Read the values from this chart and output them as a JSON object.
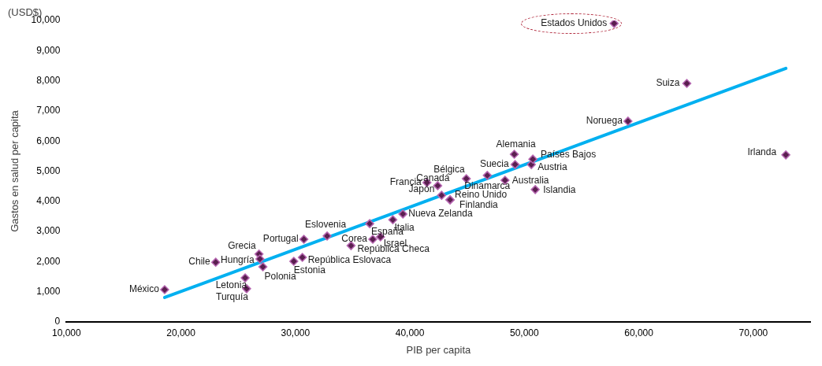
{
  "chart_data": {
    "type": "scatter",
    "xlabel": "PIB per capita",
    "ylabel": "Gastos en salud per capita",
    "annotations": [
      "(USD$)"
    ],
    "xlim": [
      10000,
      75000
    ],
    "xticks": [
      {
        "value": 10000,
        "label": "10,000"
      },
      {
        "value": 20000,
        "label": "20,000"
      },
      {
        "value": 30000,
        "label": "30,000"
      },
      {
        "value": 40000,
        "label": "40,000"
      },
      {
        "value": 50000,
        "label": "50,000"
      },
      {
        "value": 60000,
        "label": "60,000"
      },
      {
        "value": 70000,
        "label": "70,000"
      }
    ],
    "ylim": [
      0,
      10000
    ],
    "yticks": [
      0,
      {
        "value": 1000,
        "label": "1,000"
      },
      {
        "value": 2000,
        "label": "2,000"
      },
      {
        "value": 3000,
        "label": "3,000"
      },
      {
        "value": 4000,
        "label": "4,000"
      },
      {
        "value": 5000,
        "label": "5,000"
      },
      {
        "value": 6000,
        "label": "6,000"
      },
      {
        "value": 7000,
        "label": "7,000"
      },
      {
        "value": 8000,
        "label": "8,000"
      },
      {
        "value": 9000,
        "label": "9,000"
      },
      {
        "value": 10000,
        "label": "10,000"
      }
    ],
    "grid": false,
    "legend": false,
    "marker": "diamond",
    "series": [
      {
        "type": "scatter",
        "color": "#5a1f4f",
        "x": [
          18580,
          23040,
          26820,
          26900,
          27160,
          25610,
          25740,
          30740,
          32770,
          29860,
          30610,
          34860,
          36760,
          37430,
          36490,
          38510,
          39390,
          41490,
          42430,
          42770,
          43510,
          44930,
          43510,
          49120,
          49190,
          48310,
          50950,
          50610,
          46760,
          50740,
          59050,
          64190,
          72840,
          57840
        ],
        "values": [
          1070,
          1980,
          2250,
          2090,
          1830,
          1460,
          1100,
          2740,
          2850,
          2010,
          2140,
          2530,
          2740,
          2820,
          3260,
          3390,
          3580,
          4620,
          4520,
          4200,
          4050,
          4750,
          4050,
          5560,
          5220,
          4700,
          4390,
          5220,
          4860,
          5400,
          6660,
          7910,
          5540,
          9900
        ],
        "value_labels": [
          "México",
          "Chile",
          "Grecia",
          "Hungría",
          "Polonia",
          "Letonia",
          "Turquía",
          "Portugal",
          "Eslovenia",
          "Estonia",
          "República Eslovaca",
          "República Checa",
          "Corea",
          "Israel",
          "España",
          "Italia",
          "Nueva Zelanda",
          "Francia",
          "Canadá",
          "Japón",
          "Reino Unido",
          "Bélgica",
          "Finlandia",
          "Alemania",
          "Suecia",
          "Australia",
          "Islandia",
          "Austria",
          "Dinamarca",
          "Países Bajos",
          "Noruega",
          "Suiza",
          "Irlanda",
          "Estados Unidos"
        ]
      },
      {
        "type": "line",
        "color": "#00b0f0",
        "line_style": "solid",
        "marker": "none",
        "x": [
          18580,
          72840
        ],
        "values": [
          810,
          8410
        ]
      }
    ]
  }
}
